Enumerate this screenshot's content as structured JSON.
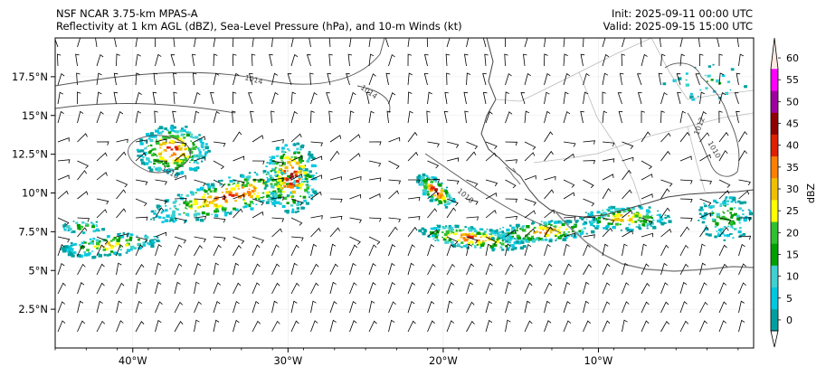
{
  "header": {
    "left_line1": "NSF NCAR 3.75-km MPAS-A",
    "left_line2": "Reflectivity at 1 km AGL (dBZ), Sea-Level Pressure (hPa), and 10-m Winds (kt)",
    "right_line1": "Init: 2025-09-11 00:00 UTC",
    "right_line2": "Valid: 2025-09-15 15:00 UTC"
  },
  "map": {
    "lon_range": [
      -45,
      0
    ],
    "lat_range": [
      0,
      20
    ],
    "lon_ticks": [
      {
        "value": -40,
        "label": "40°W"
      },
      {
        "value": -30,
        "label": "30°W"
      },
      {
        "value": -20,
        "label": "20°W"
      },
      {
        "value": -10,
        "label": "10°W"
      }
    ],
    "lat_ticks": [
      {
        "value": 2.5,
        "label": "2.5°N"
      },
      {
        "value": 5,
        "label": "5°N"
      },
      {
        "value": 7.5,
        "label": "7.5°N"
      },
      {
        "value": 10,
        "label": "10°N"
      },
      {
        "value": 12.5,
        "label": "12.5°N"
      },
      {
        "value": 15,
        "label": "15°N"
      },
      {
        "value": 17.5,
        "label": "17.5°N"
      }
    ],
    "isobar_labels": [
      "1014",
      "1014",
      "1010",
      "1012",
      "1010",
      "1010"
    ]
  },
  "colorbar": {
    "label": "dBZ",
    "ticks": [
      "0",
      "5",
      "10",
      "15",
      "20",
      "25",
      "30",
      "35",
      "40",
      "45",
      "50",
      "55",
      "60"
    ],
    "colors": [
      "#00a0a0",
      "#00c8e0",
      "#40d0d0",
      "#00a000",
      "#30c030",
      "#ffff00",
      "#f0c000",
      "#ff8000",
      "#e02000",
      "#900000",
      "#a000a0",
      "#ff00ff",
      "#ffe8e0"
    ]
  }
}
